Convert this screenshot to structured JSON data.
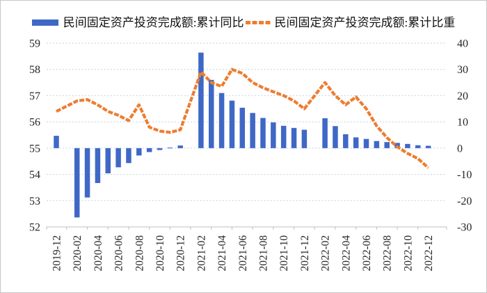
{
  "chart_data": {
    "type": "combo-bar-line",
    "title": "",
    "legend_position": "top",
    "grid": "horizontal-dashed",
    "categories": [
      "2019-12",
      "2020-02",
      "2020-03",
      "2020-04",
      "2020-05",
      "2020-06",
      "2020-07",
      "2020-08",
      "2020-09",
      "2020-10",
      "2020-11",
      "2020-12",
      "2021-02",
      "2021-03",
      "2021-04",
      "2021-05",
      "2021-06",
      "2021-07",
      "2021-08",
      "2021-09",
      "2021-10",
      "2021-11",
      "2021-12",
      "2022-02",
      "2022-03",
      "2022-04",
      "2022-05",
      "2022-06",
      "2022-07",
      "2022-08",
      "2022-09",
      "2022-10",
      "2022-11",
      "2022-12"
    ],
    "series": [
      {
        "name": "民间固定资产投资完成额:累计同比",
        "type": "bar",
        "axis": "right",
        "color": "#3f68c6",
        "values": [
          4.7,
          -26.4,
          -18.8,
          -13.3,
          -9.6,
          -7.3,
          -5.7,
          -2.8,
          -1.5,
          -0.7,
          0.2,
          1.0,
          36.4,
          26.0,
          21.0,
          18.1,
          15.4,
          13.4,
          11.5,
          9.8,
          8.5,
          7.7,
          7.0,
          11.4,
          8.4,
          5.3,
          4.1,
          3.5,
          2.7,
          2.3,
          2.0,
          1.6,
          1.1,
          0.9
        ]
      },
      {
        "name": "民间固定资产投资完成额:累计比重",
        "type": "line",
        "axis": "left",
        "color": "#ed7d31",
        "values": [
          56.4,
          56.8,
          56.85,
          56.65,
          56.4,
          56.25,
          56.05,
          56.65,
          55.8,
          55.65,
          55.6,
          55.7,
          57.9,
          57.5,
          57.35,
          58.0,
          57.85,
          57.5,
          57.3,
          57.15,
          57.0,
          56.8,
          56.5,
          57.5,
          57.0,
          56.65,
          56.95,
          56.5,
          55.85,
          55.4,
          55.05,
          54.8,
          54.6,
          54.25
        ]
      }
    ],
    "left_axis": {
      "min": 52,
      "max": 59,
      "ticks": [
        52,
        53,
        54,
        55,
        56,
        57,
        58,
        59
      ]
    },
    "right_axis": {
      "min": -30,
      "max": 40,
      "ticks": [
        -30,
        -20,
        -10,
        0,
        10,
        20,
        30,
        40
      ]
    },
    "x_tick_labels": [
      "2019-12",
      "2020-02",
      "2020-04",
      "2020-06",
      "2020-08",
      "2020-10",
      "2020-12",
      "2021-02",
      "2021-04",
      "2021-06",
      "2021-08",
      "2021-10",
      "2021-12",
      "2022-02",
      "2022-04",
      "2022-06",
      "2022-08",
      "2022-10",
      "2022-12"
    ]
  },
  "colors": {
    "bar": "#3f68c6",
    "line": "#ed7d31",
    "gridline": "#bfd3ea",
    "axis_line": "#bfbfbf",
    "tick_text": "#262626",
    "legend_text": "#111111"
  }
}
